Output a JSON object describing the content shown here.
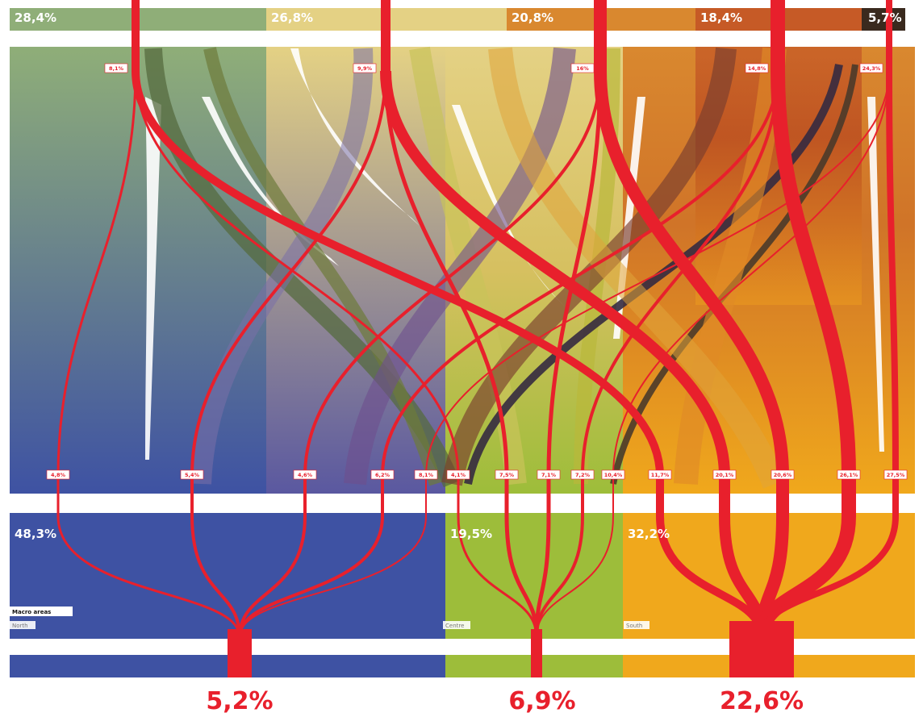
{
  "chart_data": {
    "type": "sankey",
    "top_categories": [
      {
        "value": "28,4%",
        "color": "#8fae78"
      },
      {
        "value": "26,8%",
        "color": "#e4d184"
      },
      {
        "value": "20,8%",
        "color": "#d9882f"
      },
      {
        "value": "18,4%",
        "color": "#c65a26"
      },
      {
        "value": "5,7%",
        "color": "#3a2a1e"
      }
    ],
    "top_rates": [
      "8,1%",
      "9,9%",
      "16%",
      "14,8%",
      "24,3%"
    ],
    "flow_labels": [
      "4,8%",
      "5,4%",
      "4,6%",
      "6,2%",
      "8,1%",
      "4,1%",
      "7,5%",
      "7,1%",
      "7,2%",
      "10,4%",
      "11,7%",
      "20,1%",
      "20,6%",
      "26,1%",
      "27,5%"
    ],
    "macro_areas": [
      {
        "value": "48,3%",
        "name": "North",
        "color": "#3e52a3",
        "rate": "5,2%"
      },
      {
        "value": "19,5%",
        "name": "Centre",
        "color": "#9dbd3a",
        "rate": "6,9%"
      },
      {
        "value": "32,2%",
        "name": "South",
        "color": "#f0a81c",
        "rate": "22,6%"
      }
    ],
    "legend_title": "Macro areas",
    "accent_color": "#e8202c"
  }
}
